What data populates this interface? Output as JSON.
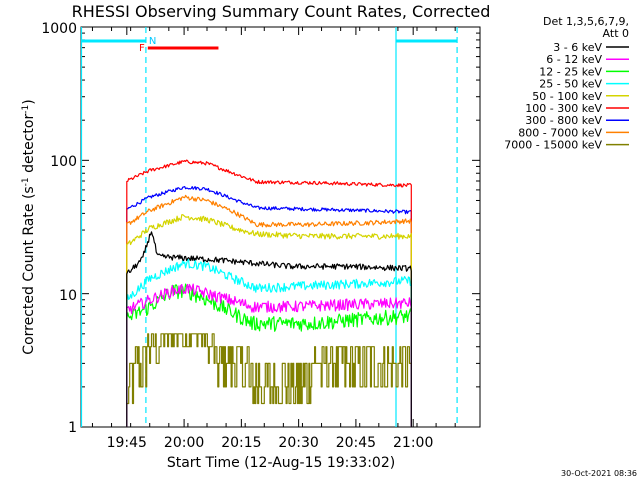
{
  "chart_data": {
    "type": "line",
    "title": "RHESSI Observing Summary Count Rates, Corrected",
    "ylabel_main": "Corrected Count Rate (s",
    "ylabel_sup1": "-1",
    "ylabel_mid": " detector",
    "ylabel_sup2": "-1",
    "ylabel_end": ")",
    "xlabel": "Start Time (12-Aug-15 19:33:02)",
    "yscale": "log",
    "ylim": [
      1,
      1000
    ],
    "xlim_minutes_after_start": [
      0,
      104.5
    ],
    "ytick_labels": [
      "1000",
      "100",
      "10",
      "1"
    ],
    "ytick_values": [
      1000,
      100,
      10,
      1
    ],
    "xtick_labels": [
      "19:45",
      "20:00",
      "20:15",
      "20:30",
      "20:45",
      "21:00"
    ],
    "xtick_minutes": [
      12,
      27,
      42,
      57,
      72,
      87
    ],
    "legend_header": [
      "Det 1,3,5,6,7,9,",
      "Att 0"
    ],
    "series": [
      {
        "name": "3 - 6 keV",
        "color": "#000000",
        "key_minutes": [
          12,
          16,
          18.5,
          20,
          35,
          55,
          70,
          85
        ],
        "key_values": [
          14,
          18,
          30,
          19,
          18,
          16,
          16,
          15.5
        ]
      },
      {
        "name": "6 - 12 keV",
        "color": "#ff00ff",
        "key_minutes": [
          12,
          18,
          24,
          28,
          36,
          45,
          55,
          70,
          85
        ],
        "key_values": [
          7.5,
          9,
          10.5,
          11,
          9.5,
          8,
          8,
          8.3,
          8.5
        ]
      },
      {
        "name": "12 - 25 keV",
        "color": "#00ff00",
        "key_minutes": [
          12,
          18,
          24,
          28,
          35,
          45,
          60,
          75,
          85
        ],
        "key_values": [
          6.5,
          8,
          10.5,
          10.5,
          8.5,
          6,
          6,
          6.5,
          6.8
        ]
      },
      {
        "name": "25 - 50 keV",
        "color": "#00ffff",
        "key_minutes": [
          12,
          18,
          27,
          33,
          40,
          46,
          60,
          75,
          85
        ],
        "key_values": [
          9,
          13,
          17,
          16,
          13,
          11,
          11.5,
          12,
          12.5
        ]
      },
      {
        "name": "50 - 100 keV",
        "color": "#d4d400",
        "key_minutes": [
          12,
          18,
          27,
          33,
          40,
          46,
          60,
          75,
          85
        ],
        "key_values": [
          23,
          31,
          38,
          36,
          31,
          28,
          27,
          27,
          27
        ]
      },
      {
        "name": "100 - 300 keV",
        "color": "#ff0000",
        "key_minutes": [
          12,
          18,
          27,
          33,
          40,
          46,
          60,
          75,
          85
        ],
        "key_values": [
          70,
          84,
          98,
          95,
          80,
          69,
          68,
          66,
          65
        ]
      },
      {
        "name": "300 - 800 keV",
        "color": "#0000ff",
        "key_minutes": [
          12,
          18,
          27,
          33,
          40,
          46,
          60,
          75,
          85
        ],
        "key_values": [
          43,
          53,
          63,
          61,
          51,
          44,
          43,
          42,
          41
        ]
      },
      {
        "name": "800 - 7000 keV",
        "color": "#ff8000",
        "key_minutes": [
          12,
          18,
          27,
          33,
          40,
          46,
          60,
          75,
          85
        ],
        "key_values": [
          33,
          42,
          53,
          50,
          41,
          33,
          33,
          34,
          35
        ]
      },
      {
        "name": "7000 - 15000 keV",
        "color": "#808000",
        "key_minutes": [
          12,
          14,
          17,
          21,
          31,
          35,
          40,
          44,
          56,
          60,
          70,
          85
        ],
        "key_values": [
          1.5,
          2,
          3,
          4,
          5,
          3,
          3,
          2,
          1.5,
          2,
          2.5,
          2.5
        ]
      }
    ],
    "attenuator_markers": [
      {
        "label": "",
        "color": "#00e8ff",
        "minutes": [
          0,
          17
        ]
      },
      {
        "label": "",
        "color": "#00e8ff",
        "minutes": [
          82.5,
          98.5
        ]
      }
    ],
    "flare_flag": {
      "label": "F",
      "color": "#ff0000",
      "minutes": [
        17.5,
        36
      ]
    },
    "night_flag_label": "N",
    "vertical_markers_minutes": [
      0,
      17,
      82.5,
      98.5
    ],
    "data_window_minutes": [
      12,
      86.5
    ],
    "footer": "30-Oct-2021 08:36"
  }
}
